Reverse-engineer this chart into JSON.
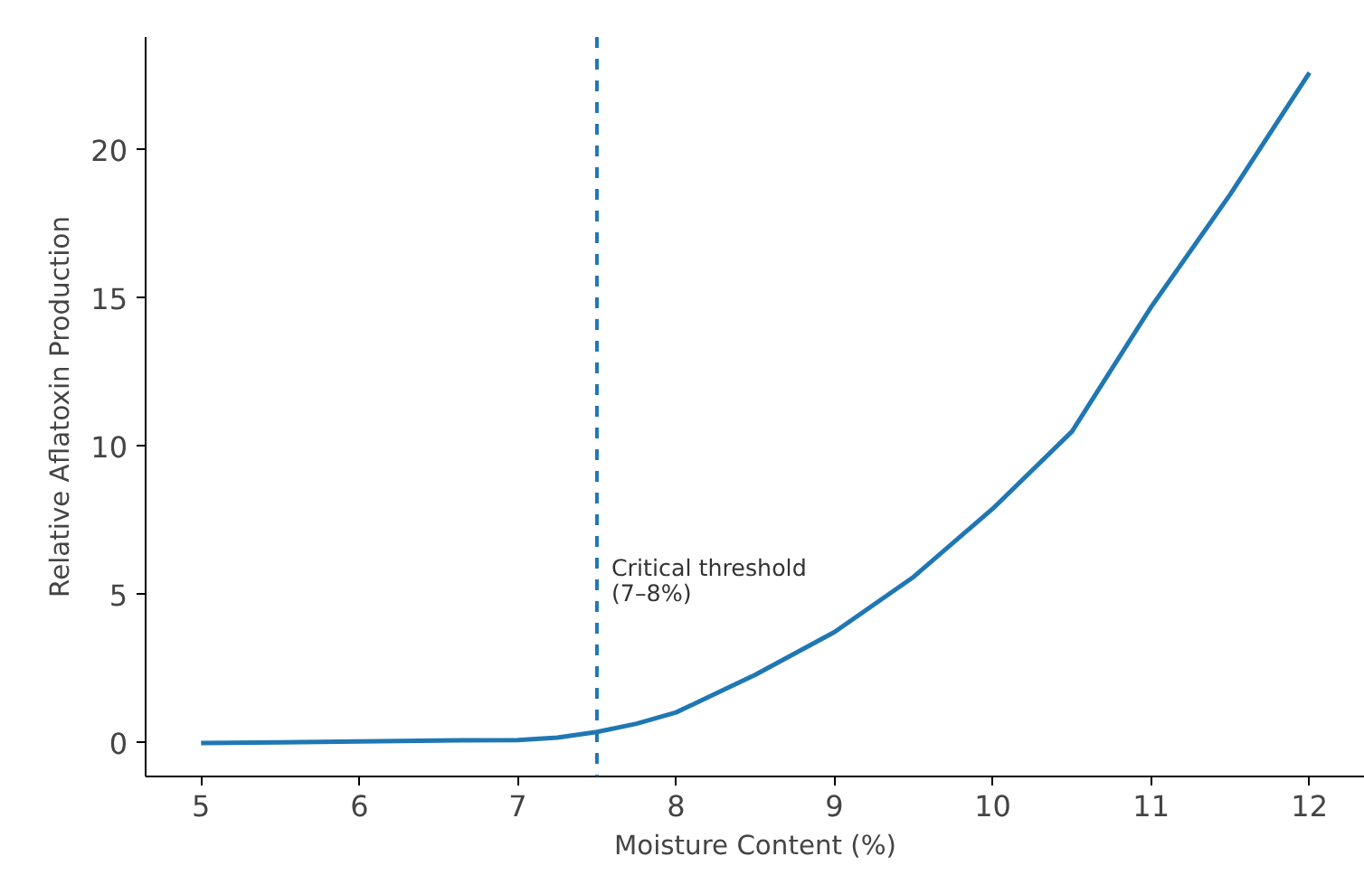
{
  "chart_data": {
    "type": "line",
    "xlabel": "Moisture Content (%)",
    "ylabel": "Relative Aflatoxin Production",
    "x": [
      5,
      5.5,
      6,
      6.5,
      7,
      7.25,
      7.5,
      7.75,
      8,
      8.5,
      9,
      9.5,
      10,
      10.5,
      11,
      11.5,
      12
    ],
    "series": [
      {
        "color": "#1f77b4",
        "values": [
          0,
          0.02,
          0.05,
          0.08,
          0.1,
          0.18,
          0.37,
          0.65,
          1.03,
          2.3,
          3.74,
          5.6,
          7.9,
          10.5,
          14.7,
          18.5,
          22.6
        ]
      }
    ],
    "xlim": [
      4.65,
      12.35
    ],
    "ylim": [
      -1.13,
      23.8
    ],
    "xticks": [
      5,
      6,
      7,
      8,
      9,
      10,
      11,
      12
    ],
    "yticks": [
      0,
      5,
      10,
      15,
      20
    ],
    "ref_lines": [
      {
        "axis": "x",
        "value": 7.5,
        "label": "Critical threshold\n(7–8%)",
        "color": "#1f77b4",
        "line_style": "dashed"
      }
    ],
    "grid": false,
    "marker": "none",
    "line_style": "solid"
  }
}
